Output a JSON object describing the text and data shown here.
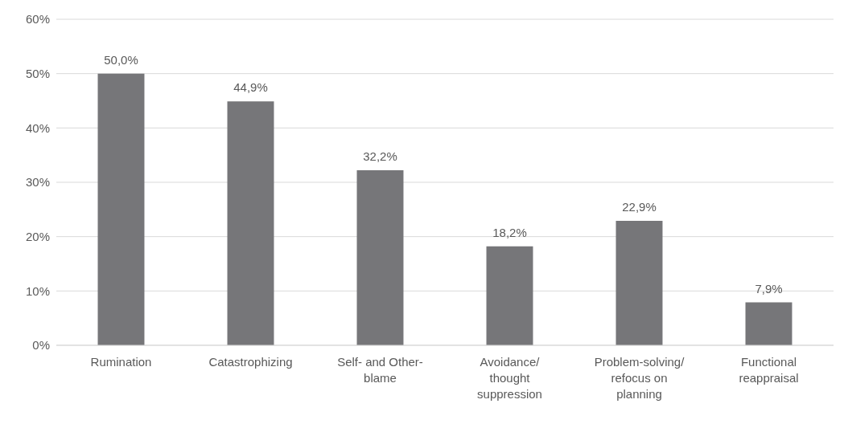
{
  "chart_data": {
    "type": "bar",
    "categories": [
      "Rumination",
      "Catastrophizing",
      "Self- and Other-blame",
      "Avoidance/ thought suppression",
      "Problem-solving/ refocus on planning",
      "Functional reappraisal"
    ],
    "values": [
      50.0,
      44.9,
      32.2,
      18.2,
      22.9,
      7.9
    ],
    "value_labels": [
      "50,0%",
      "44,9%",
      "32,2%",
      "18,2%",
      "22,9%",
      "7,9%"
    ],
    "color": "#767679",
    "ylim": [
      0,
      60
    ],
    "yticks": [
      {
        "value": 0,
        "label": "0%"
      },
      {
        "value": 10,
        "label": "10%"
      },
      {
        "value": 20,
        "label": "20%"
      },
      {
        "value": 30,
        "label": "30%"
      },
      {
        "value": 40,
        "label": "40%"
      },
      {
        "value": 50,
        "label": "50%"
      },
      {
        "value": 60,
        "label": "60%"
      }
    ],
    "grid": "y"
  }
}
